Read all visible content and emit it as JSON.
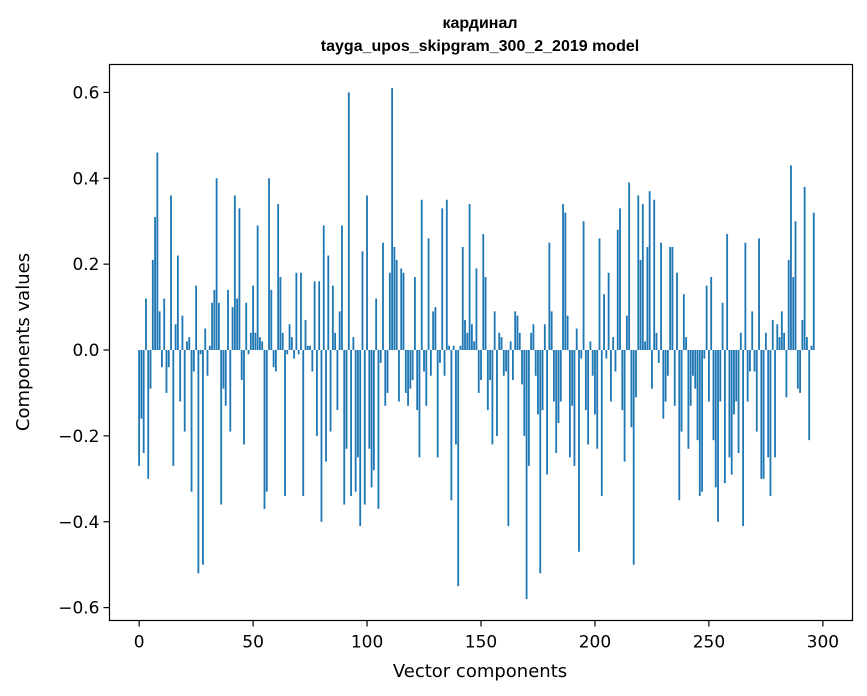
{
  "chart_data": {
    "type": "bar",
    "title": "кардинал",
    "subtitle": "tayga_upos_skipgram_300_2_2019 model",
    "xlabel": "Vector components",
    "ylabel": "Components values",
    "xlim": [
      -13,
      313
    ],
    "ylim": [
      -0.63,
      0.665
    ],
    "xticks": [
      0,
      50,
      100,
      150,
      200,
      250,
      300
    ],
    "yticks": [
      -0.6,
      -0.4,
      -0.2,
      0.0,
      0.2,
      0.4,
      0.6
    ],
    "ytick_labels": [
      "−0.6",
      "−0.4",
      "−0.2",
      "0.0",
      "0.2",
      "0.4",
      "0.6"
    ],
    "bar_color": "#1f77b4",
    "x_start": 0,
    "values": [
      -0.27,
      -0.16,
      -0.24,
      0.12,
      -0.3,
      -0.09,
      0.21,
      0.31,
      0.46,
      0.09,
      -0.04,
      0.12,
      -0.1,
      -0.04,
      0.36,
      -0.27,
      0.06,
      0.22,
      -0.12,
      0.08,
      -0.19,
      0.02,
      0.03,
      -0.33,
      -0.05,
      0.15,
      -0.52,
      -0.01,
      -0.5,
      0.05,
      -0.06,
      0.01,
      0.11,
      0.14,
      0.4,
      0.11,
      -0.36,
      -0.09,
      -0.13,
      0.14,
      -0.19,
      0.1,
      0.36,
      0.12,
      0.33,
      -0.07,
      -0.22,
      0.11,
      -0.01,
      0.04,
      0.15,
      0.04,
      0.29,
      0.03,
      0.02,
      -0.37,
      -0.33,
      0.4,
      0.14,
      -0.04,
      -0.05,
      0.34,
      0.17,
      0.04,
      -0.34,
      -0.01,
      0.06,
      0.03,
      -0.02,
      0.18,
      -0.01,
      0.18,
      -0.34,
      0.07,
      0.01,
      0.01,
      -0.05,
      0.16,
      -0.2,
      0.16,
      -0.4,
      0.29,
      -0.26,
      0.22,
      -0.19,
      0.15,
      0.04,
      -0.14,
      0.09,
      0.29,
      -0.36,
      -0.23,
      0.6,
      -0.34,
      0.03,
      -0.33,
      -0.25,
      -0.41,
      0.23,
      -0.36,
      0.36,
      -0.23,
      -0.32,
      -0.28,
      0.12,
      -0.37,
      -0.03,
      0.25,
      -0.13,
      -0.1,
      0.18,
      0.61,
      0.24,
      0.21,
      -0.12,
      0.19,
      0.18,
      -0.1,
      -0.13,
      -0.09,
      -0.07,
      0.17,
      -0.14,
      -0.25,
      0.35,
      -0.05,
      -0.13,
      0.26,
      -0.06,
      0.09,
      0.1,
      -0.25,
      -0.03,
      0.33,
      -0.06,
      0.35,
      0.01,
      -0.35,
      0.01,
      -0.22,
      -0.55,
      0.01,
      0.24,
      0.07,
      0.04,
      0.34,
      0.06,
      0.02,
      0.19,
      -0.1,
      -0.07,
      0.27,
      0.17,
      -0.14,
      -0.07,
      -0.22,
      0.09,
      -0.2,
      0.04,
      0.03,
      -0.06,
      -0.05,
      -0.41,
      0.02,
      -0.07,
      0.09,
      0.08,
      0.04,
      -0.08,
      -0.2,
      -0.58,
      -0.27,
      0.04,
      0.06,
      -0.06,
      -0.15,
      -0.52,
      -0.14,
      0.06,
      -0.29,
      0.25,
      0.09,
      -0.12,
      -0.24,
      -0.17,
      -0.12,
      0.34,
      0.32,
      0.08,
      -0.25,
      -0.13,
      -0.27,
      0.05,
      -0.47,
      -0.02,
      0.3,
      -0.14,
      -0.22,
      0.02,
      -0.06,
      -0.15,
      -0.23,
      0.26,
      -0.34,
      0.13,
      -0.02,
      0.18,
      -0.12,
      0.03,
      -0.05,
      0.28,
      0.33,
      -0.14,
      -0.26,
      0.08,
      0.39,
      -0.18,
      -0.5,
      -0.11,
      0.36,
      0.21,
      0.34,
      0.02,
      0.24,
      0.37,
      -0.09,
      0.35,
      0.04,
      -0.03,
      0.25,
      -0.16,
      -0.12,
      -0.06,
      0.24,
      0.24,
      -0.13,
      0.18,
      -0.35,
      -0.19,
      0.13,
      0.03,
      -0.23,
      -0.13,
      -0.06,
      -0.09,
      -0.21,
      -0.34,
      -0.33,
      -0.02,
      0.15,
      -0.12,
      0.17,
      -0.21,
      -0.32,
      -0.4,
      -0.12,
      0.11,
      -0.31,
      0.27,
      -0.25,
      -0.29,
      -0.15,
      -0.12,
      -0.24,
      0.04,
      -0.41,
      0.25,
      -0.12,
      -0.05,
      0.09,
      -0.05,
      -0.19,
      0.26,
      -0.3,
      -0.3,
      0.04,
      -0.25,
      -0.34,
      0.07,
      -0.25,
      0.06,
      0.03,
      0.09,
      0.04,
      -0.11,
      0.21,
      0.43,
      0.17,
      0.3,
      -0.09,
      -0.1,
      0.07,
      0.38,
      0.03,
      -0.21,
      0.01,
      0.32
    ]
  }
}
